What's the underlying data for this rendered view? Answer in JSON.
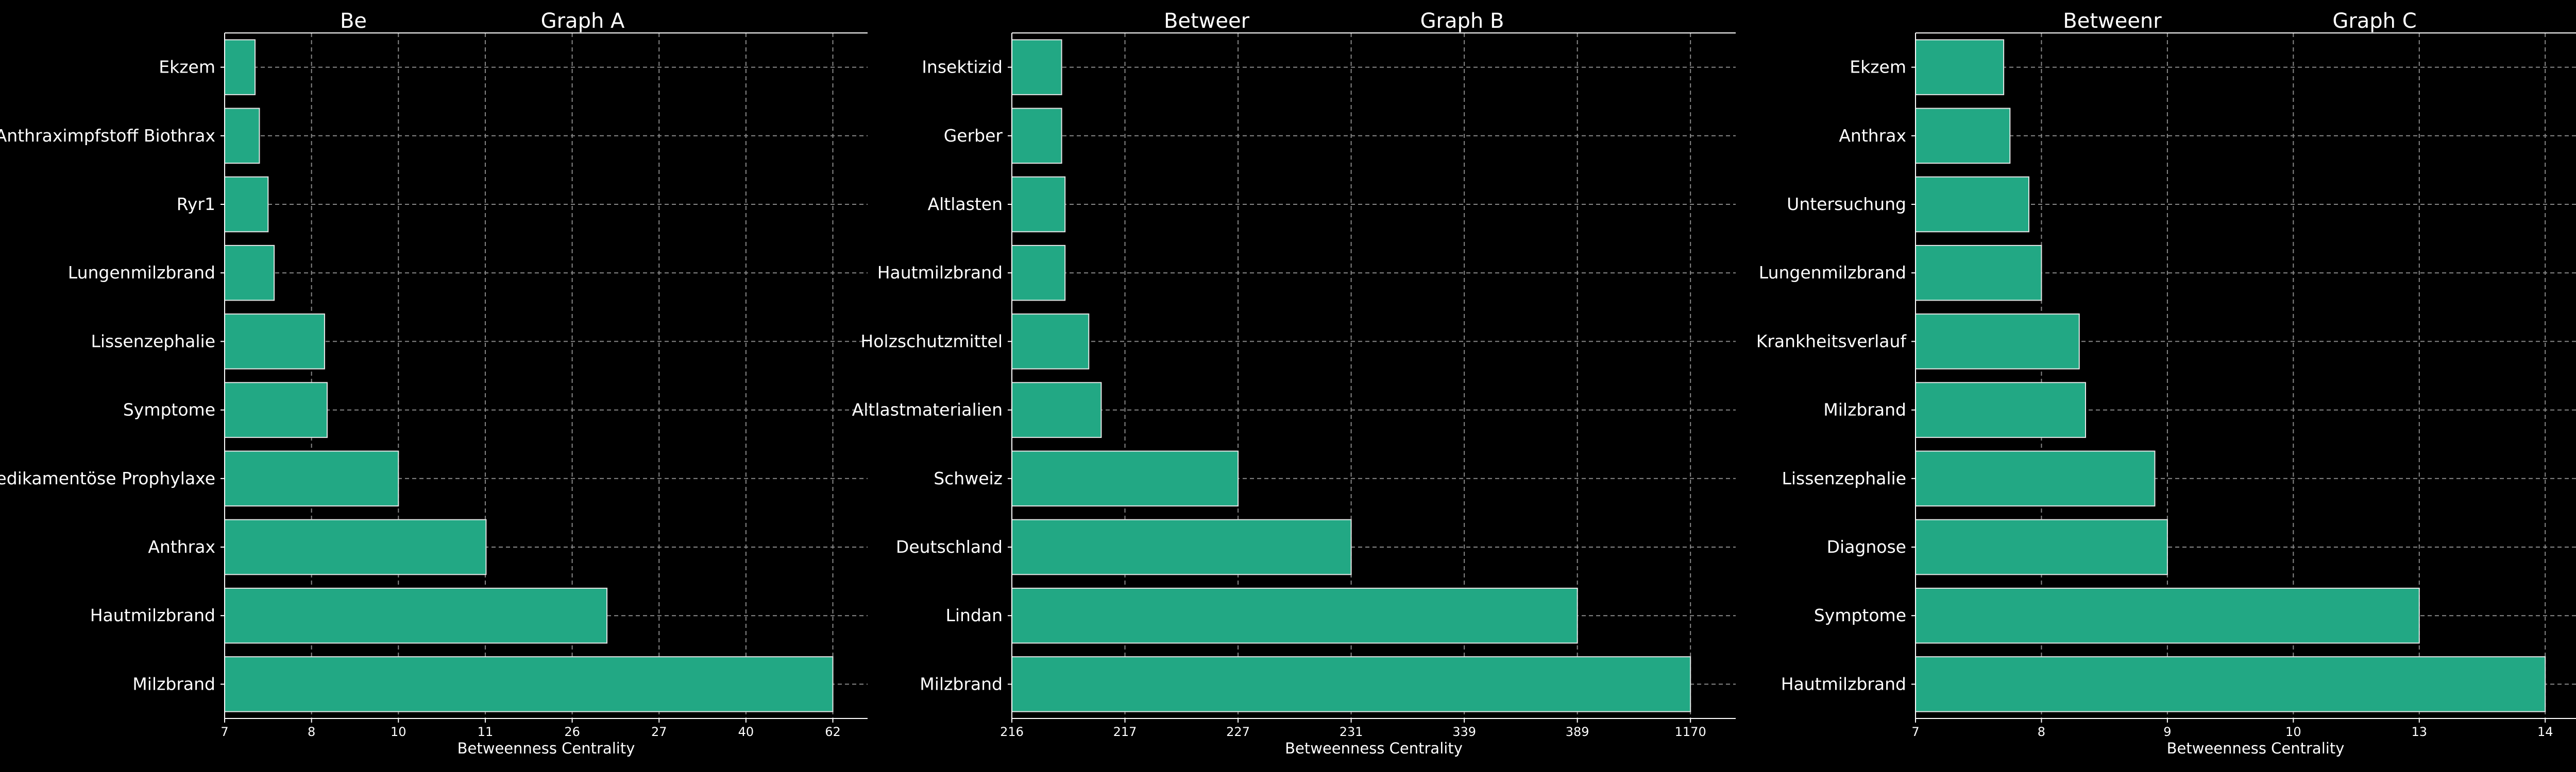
{
  "colors": {
    "background": "#000000",
    "bar": "#22a884",
    "bar_edge": "#e6e6e6",
    "grid": "#888888",
    "text": "#ffffff"
  },
  "chart_data": [
    {
      "type": "bar",
      "orientation": "horizontal",
      "title": "Graph A",
      "title_fragment": "Be",
      "xlabel": "Betweenness Centrality",
      "x_tick_labels": [
        "7",
        "8",
        "10",
        "11",
        "26",
        "27",
        "40",
        "62"
      ],
      "x_scale": "categorical-ticks",
      "grid": true,
      "categories": [
        "Ekzem",
        "Anthraximpfstoff Biothrax",
        "Ryr1",
        "Lungenmilzbrand",
        "Lissenzephalie",
        "Symptome",
        "Medikamentöse Prophylaxe",
        "Anthrax",
        "Hautmilzbrand",
        "Milzbrand"
      ],
      "values": [
        7.35,
        7.4,
        7.5,
        7.57,
        8.3,
        8.36,
        10.0,
        11.13,
        26.4,
        62.0
      ]
    },
    {
      "type": "bar",
      "orientation": "horizontal",
      "title": "Graph B",
      "title_fragment": "Betweer",
      "xlabel": "Betweenness Centrality",
      "x_tick_labels": [
        "216",
        "217",
        "227",
        "231",
        "339",
        "389",
        "1170"
      ],
      "x_scale": "categorical-ticks",
      "grid": true,
      "categories": [
        "Insektizid",
        "Gerber",
        "Altlasten",
        "Hautmilzbrand",
        "Holzschutzmittel",
        "Altlastmaterialien",
        "Schweiz",
        "Deutschland",
        "Lindan",
        "Milzbrand"
      ],
      "values": [
        216.44,
        216.44,
        216.47,
        216.47,
        216.68,
        216.79,
        227.0,
        231.0,
        389.0,
        1170.0
      ]
    },
    {
      "type": "bar",
      "orientation": "horizontal",
      "title": "Graph C",
      "title_fragment": "Betweenr",
      "xlabel": "Betweenness Centrality",
      "x_tick_labels": [
        "7",
        "8",
        "9",
        "10",
        "13",
        "14"
      ],
      "x_scale": "categorical-ticks",
      "grid": true,
      "categories": [
        "Ekzem",
        "Anthrax",
        "Untersuchung",
        "Lungenmilzbrand",
        "Krankheitsverlauf",
        "Milzbrand",
        "Lissenzephalie",
        "Diagnose",
        "Symptome",
        "Hautmilzbrand"
      ],
      "values": [
        7.7,
        7.75,
        7.9,
        8.0,
        8.3,
        8.35,
        8.9,
        9.0,
        13.0,
        14.25
      ]
    }
  ]
}
